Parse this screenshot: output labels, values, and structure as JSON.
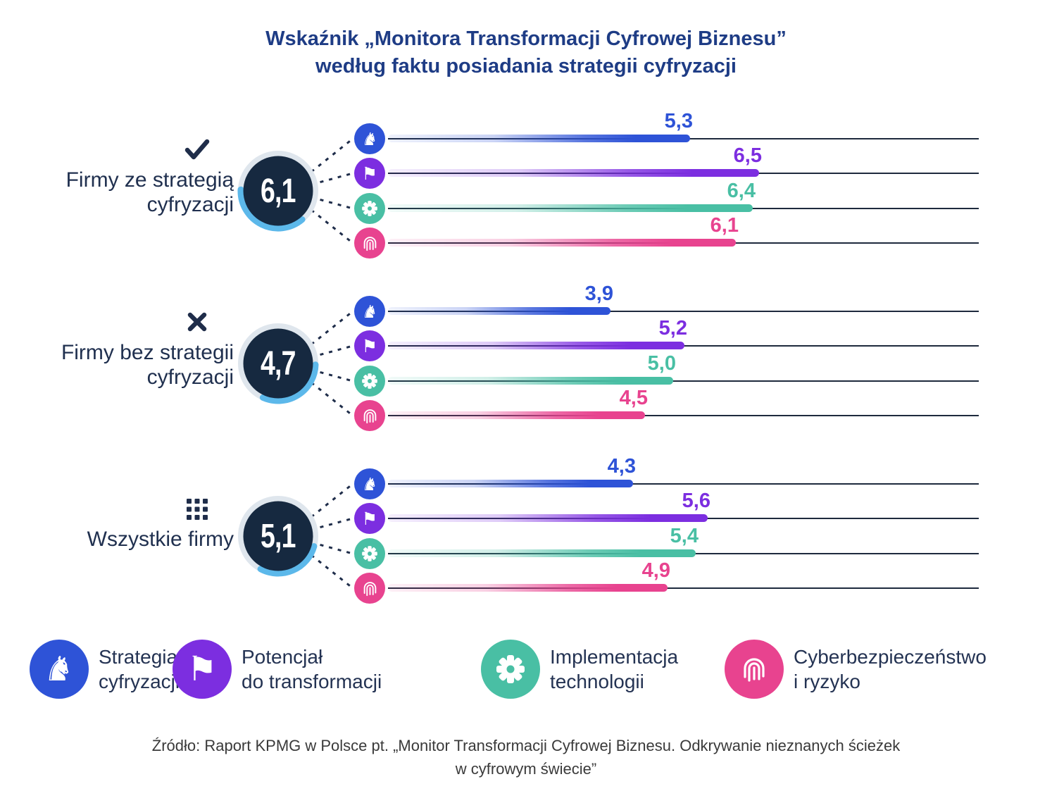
{
  "title": {
    "line1": "Wskaźnik „Monitora Transformacji Cyfrowej Biznesu”",
    "line2": "według faktu posiadania strategii cyfryzacji"
  },
  "colors": {
    "title": "#1e3c85",
    "navy": "#1f2d4a",
    "disc_navy": "#162940",
    "ring_gray": "#dfe6ed",
    "ring_blue": "#5cb8ea",
    "track": "#1e2a3d",
    "source_text": "#3a3a3a"
  },
  "chart_data": {
    "type": "bar",
    "title": "Wskaźnik „Monitora Transformacji Cyfrowej Biznesu” według faktu posiadania strategii cyfryzacji",
    "axis_max": 10,
    "grid": false,
    "categories": [
      "Strategia cyfryzacji",
      "Potencjał do transformacji",
      "Implementacja technologii",
      "Cyberbezpieczeństwo i ryzyko"
    ],
    "category_icons": [
      "knight-icon",
      "flag-icon",
      "gear-icon",
      "fingerprint-icon"
    ],
    "category_colors": [
      "#2e53d7",
      "#7c2ee0",
      "#49bfa4",
      "#e8438f"
    ],
    "groups": [
      {
        "id": "with-strategy",
        "label": "Firmy ze strategią cyfryzacji",
        "label_lines": [
          "Firmy ze strategią",
          "cyfryzacji"
        ],
        "marker": "check",
        "overall_display": "6,1",
        "overall_value": 6.1,
        "values": [
          5.3,
          6.5,
          6.4,
          6.1
        ],
        "value_displays": [
          "5,3",
          "6,5",
          "6,4",
          "6,1"
        ]
      },
      {
        "id": "without-strategy",
        "label": "Firmy bez strategii cyfryzacji",
        "label_lines": [
          "Firmy bez strategii",
          "cyfryzacji"
        ],
        "marker": "cross",
        "overall_display": "4,7",
        "overall_value": 4.7,
        "values": [
          3.9,
          5.2,
          5.0,
          4.5
        ],
        "value_displays": [
          "3,9",
          "5,2",
          "5,0",
          "4,5"
        ]
      },
      {
        "id": "all-companies",
        "label": "Wszystkie firmy",
        "label_lines": [
          "Wszystkie firmy"
        ],
        "marker": "grid",
        "overall_display": "5,1",
        "overall_value": 5.1,
        "values": [
          4.3,
          5.6,
          5.4,
          4.9
        ],
        "value_displays": [
          "4,3",
          "5,6",
          "5,4",
          "4,9"
        ]
      }
    ]
  },
  "legend": [
    {
      "line1": "Strategia",
      "line2": "cyfryzacji"
    },
    {
      "line1": "Potencjał",
      "line2": "do transformacji"
    },
    {
      "line1": "Implementacja",
      "line2": "technologii"
    },
    {
      "line1": "Cyberbezpieczeństwo",
      "line2": "i ryzyko"
    }
  ],
  "source": {
    "line1": "Źródło: Raport KPMG w Polsce pt. „Monitor Transformacji Cyfrowej Biznesu. Odkrywanie nieznanych ścieżek",
    "line2": "w cyfrowym świecie”"
  }
}
